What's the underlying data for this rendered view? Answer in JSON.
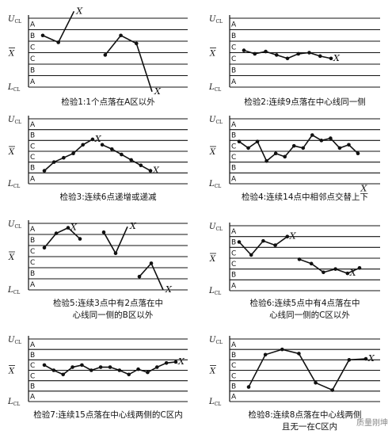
{
  "zone_labels": [
    "A",
    "B",
    "C",
    "C",
    "B",
    "A"
  ],
  "limit_labels": {
    "ucl": "U",
    "ucl_sub": "CL",
    "center": "X",
    "lcl": "L",
    "lcl_sub": "CL"
  },
  "watermark": "质量刚坤",
  "chart_data": [
    {
      "type": "line",
      "caption": [
        "检验1:1个点落在A区以外"
      ],
      "ylim": [
        -3,
        3
      ],
      "segments": [
        {
          "x": [
            1,
            2,
            3
          ],
          "y": [
            1.5,
            0.9,
            3.6
          ],
          "marks": [
            true,
            true,
            false
          ],
          "x_label_index": 2
        },
        {
          "x": [
            5,
            6,
            7,
            8
          ],
          "y": [
            -0.2,
            1.5,
            0.8,
            -3.4
          ],
          "marks": [
            true,
            true,
            true,
            false
          ],
          "x_label_index": 3
        }
      ]
    },
    {
      "type": "line",
      "caption": [
        "检验2:连续9点落在中心线同一侧"
      ],
      "ylim": [
        -3,
        3
      ],
      "segments": [
        {
          "x": [
            1,
            2,
            3,
            4,
            5,
            6,
            7,
            8,
            9
          ],
          "y": [
            0.2,
            -0.1,
            0.1,
            -0.2,
            -0.5,
            -0.1,
            0.0,
            -0.3,
            -0.5
          ],
          "marks": [
            true,
            true,
            true,
            true,
            true,
            true,
            true,
            true,
            true
          ],
          "x_label_index": 8
        }
      ]
    },
    {
      "type": "line",
      "caption": [
        "检验3:连续6点递增或递减"
      ],
      "ylim": [
        -3,
        3
      ],
      "segments": [
        {
          "x": [
            1,
            2,
            3,
            4,
            5,
            6
          ],
          "y": [
            -1.8,
            -1.0,
            -0.6,
            -0.2,
            0.6,
            1.1
          ],
          "marks": [
            true,
            true,
            true,
            true,
            true,
            true
          ],
          "x_label_index": 5
        },
        {
          "x": [
            7,
            8,
            9,
            10,
            11,
            12
          ],
          "y": [
            0.6,
            0.2,
            -0.3,
            -0.8,
            -1.3,
            -1.8
          ],
          "marks": [
            true,
            true,
            true,
            true,
            true,
            true
          ],
          "x_label_index": 5
        }
      ]
    },
    {
      "type": "line",
      "caption": [
        "检验4:连续14点中相邻点交替上下"
      ],
      "ylim": [
        -3,
        3
      ],
      "segments": [
        {
          "x": [
            1,
            2,
            3,
            4,
            5,
            6,
            7,
            8,
            9,
            10,
            11,
            12,
            13,
            14
          ],
          "y": [
            0.9,
            0.3,
            0.9,
            -0.9,
            -0.2,
            -0.5,
            0.5,
            0.3,
            1.5,
            1.0,
            1.2,
            0.3,
            0.6,
            -0.2
          ],
          "marks": [
            true,
            true,
            true,
            true,
            true,
            true,
            true,
            true,
            true,
            true,
            true,
            true,
            true,
            true
          ],
          "x_label": {
            "x": 14.3,
            "y": -3.4
          }
        }
      ]
    },
    {
      "type": "line",
      "caption": [
        "检验5:连续3点中有2点落在中",
        "心线同一侧的B区以外"
      ],
      "ylim": [
        -3,
        3
      ],
      "segments": [
        {
          "x": [
            1,
            2,
            3,
            4
          ],
          "y": [
            0.8,
            2.1,
            2.6,
            1.6
          ],
          "marks": [
            true,
            true,
            true,
            true
          ],
          "x_label_index": 2
        },
        {
          "x": [
            6,
            7,
            8
          ],
          "y": [
            2.2,
            0.3,
            2.7
          ],
          "marks": [
            true,
            true,
            false
          ],
          "x_label_index": 2
        },
        {
          "x": [
            9,
            10,
            11
          ],
          "y": [
            -1.8,
            -0.6,
            -3.0
          ],
          "marks": [
            true,
            true,
            false
          ],
          "x_label_index": 2
        }
      ]
    },
    {
      "type": "line",
      "caption": [
        "检验6:连续5点中有4点落在中",
        "心线同一侧的C区以外"
      ],
      "ylim": [
        -3,
        3
      ],
      "segments": [
        {
          "x": [
            1,
            2,
            3,
            4,
            5
          ],
          "y": [
            1.5,
            0.3,
            1.6,
            1.2,
            2.0
          ],
          "marks": [
            true,
            true,
            true,
            true,
            true
          ],
          "x_label_index": 4
        },
        {
          "x": [
            6,
            7,
            8,
            9,
            10,
            11
          ],
          "y": [
            -0.1,
            -0.5,
            -1.3,
            -1.0,
            -1.4,
            -0.9
          ],
          "marks": [
            true,
            true,
            true,
            true,
            true,
            true
          ],
          "x_label_index": 4
        }
      ]
    },
    {
      "type": "line",
      "caption": [
        "检验7:连续15点落在中心线两侧的C区内"
      ],
      "ylim": [
        -3,
        3
      ],
      "segments": [
        {
          "x": [
            1,
            2,
            3,
            4,
            5,
            6,
            7,
            8,
            9,
            10,
            11,
            12,
            13,
            14,
            15
          ],
          "y": [
            0.5,
            0.0,
            -0.4,
            0.3,
            0.5,
            0.0,
            0.3,
            0.3,
            0.0,
            -0.4,
            0.1,
            -0.2,
            0.3,
            0.7,
            0.8
          ],
          "marks": [
            true,
            true,
            true,
            true,
            true,
            true,
            true,
            true,
            true,
            true,
            true,
            true,
            true,
            true,
            true
          ],
          "x_label_index": 14
        }
      ]
    },
    {
      "type": "line",
      "caption": [
        "检验8:连续8点落在中心线两侧",
        "且无一在C区内"
      ],
      "ylim": [
        -3,
        3
      ],
      "segments": [
        {
          "x": [
            1,
            2,
            3,
            4,
            5,
            6,
            7,
            8
          ],
          "y": [
            -1.6,
            1.5,
            2.0,
            1.6,
            -1.2,
            -1.9,
            1.0,
            1.1
          ],
          "marks": [
            true,
            true,
            true,
            true,
            true,
            true,
            true,
            true
          ],
          "x_label_index": 7
        }
      ]
    }
  ]
}
